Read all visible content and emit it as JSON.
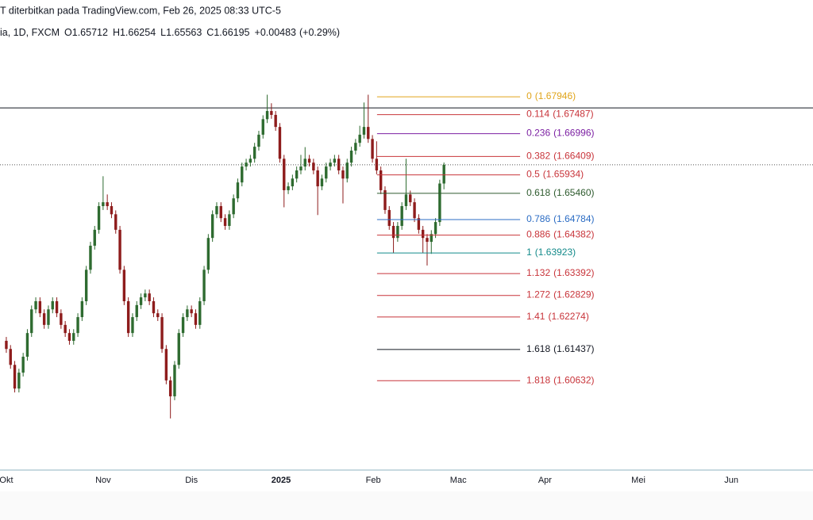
{
  "header": {
    "published": "T diterbitkan pada TradingView.com, Feb 26, 2025 08:33 UTC-5",
    "symbol": "ia, 1D, FXCM",
    "ohlc": [
      {
        "label": "O",
        "value": 1.65712
      },
      {
        "label": "H",
        "value": 1.66254
      },
      {
        "label": "L",
        "value": 1.65563
      },
      {
        "label": "C",
        "value": 1.66195
      }
    ],
    "change": {
      "value": 0.00483,
      "label": "+0.00483"
    },
    "change_pct": {
      "value": 0.29,
      "label": "(+0.29%)"
    }
  },
  "chart_data": {
    "type": "candlestick",
    "up_color": "#2e6b30",
    "down_color": "#8e1c1c",
    "ylim": [
      1.5833,
      1.7044
    ],
    "xlim": [
      -1.5,
      191.7
    ],
    "xticks": [
      {
        "value": 0,
        "label": "Okt"
      },
      {
        "value": 23,
        "label": "Nov"
      },
      {
        "value": 44,
        "label": "Dis"
      },
      {
        "value": 65.3,
        "label": "2025",
        "bold": true
      },
      {
        "value": 87.2,
        "label": "Feb"
      },
      {
        "value": 107.4,
        "label": "Mac"
      },
      {
        "value": 128,
        "label": "Apr"
      },
      {
        "value": 150.2,
        "label": "Mei"
      },
      {
        "value": 172.3,
        "label": "Jun"
      }
    ],
    "horizontal_line": 1.6766,
    "candles": {
      "open": [
        1.6166,
        1.6145,
        1.6104,
        1.6043,
        1.6084,
        1.6125,
        1.6186,
        1.6247,
        1.6268,
        1.6237,
        1.6207,
        1.6247,
        1.6268,
        1.6237,
        1.6207,
        1.6186,
        1.6166,
        1.6186,
        1.6227,
        1.6268,
        1.6349,
        1.6411,
        1.6452,
        1.6513,
        1.6523,
        1.6513,
        1.6492,
        1.6452,
        1.6349,
        1.6268,
        1.6186,
        1.6227,
        1.6258,
        1.6278,
        1.6288,
        1.6268,
        1.6237,
        1.6227,
        1.6145,
        1.6064,
        1.6023,
        1.6104,
        1.6186,
        1.6227,
        1.6247,
        1.6237,
        1.6207,
        1.6268,
        1.6349,
        1.6431,
        1.6492,
        1.6513,
        1.6482,
        1.6462,
        1.6492,
        1.6533,
        1.6574,
        1.6615,
        1.6625,
        1.6635,
        1.6666,
        1.6697,
        1.6737,
        1.6758,
        1.6748,
        1.6717,
        1.6635,
        1.6554,
        1.6564,
        1.6584,
        1.6605,
        1.6615,
        1.6635,
        1.6625,
        1.6605,
        1.6564,
        1.6584,
        1.6615,
        1.6625,
        1.6635,
        1.6605,
        1.6584,
        1.6625,
        1.6656,
        1.6676,
        1.6697,
        1.6717,
        1.6686,
        1.6635,
        1.6605,
        1.6554,
        1.6503,
        1.6462,
        1.6431,
        1.6462,
        1.6513,
        1.6543,
        1.6523,
        1.6482,
        1.6452,
        1.6431,
        1.6421,
        1.6441,
        1.6472,
        1.65712
      ],
      "high": [
        1.6176,
        1.6155,
        1.6114,
        1.6094,
        1.6135,
        1.6196,
        1.6257,
        1.6278,
        1.6278,
        1.6247,
        1.6257,
        1.6278,
        1.6278,
        1.6247,
        1.6217,
        1.6196,
        1.6196,
        1.6237,
        1.6278,
        1.6359,
        1.6421,
        1.6462,
        1.6523,
        1.659,
        1.6543,
        1.6523,
        1.6502,
        1.6462,
        1.6359,
        1.6278,
        1.6237,
        1.6268,
        1.6288,
        1.6298,
        1.6298,
        1.6278,
        1.6247,
        1.6237,
        1.6155,
        1.6074,
        1.6114,
        1.6196,
        1.6237,
        1.6257,
        1.6257,
        1.6247,
        1.6278,
        1.6359,
        1.6441,
        1.6502,
        1.6523,
        1.6523,
        1.6492,
        1.6502,
        1.6543,
        1.6584,
        1.6625,
        1.6635,
        1.6645,
        1.6676,
        1.6707,
        1.6747,
        1.68,
        1.6778,
        1.6758,
        1.6727,
        1.6645,
        1.6574,
        1.6594,
        1.6615,
        1.6645,
        1.6665,
        1.6645,
        1.6635,
        1.6615,
        1.6594,
        1.6625,
        1.6635,
        1.6645,
        1.6645,
        1.6615,
        1.6635,
        1.6666,
        1.6686,
        1.672,
        1.678,
        1.68,
        1.6696,
        1.668,
        1.6615,
        1.6564,
        1.6513,
        1.6472,
        1.6472,
        1.6523,
        1.6635,
        1.6553,
        1.6533,
        1.6492,
        1.6462,
        1.6441,
        1.6451,
        1.6482,
        1.6581,
        1.66254
      ],
      "low": [
        1.6135,
        1.6094,
        1.6033,
        1.6033,
        1.6074,
        1.6115,
        1.6176,
        1.6237,
        1.6227,
        1.6197,
        1.6197,
        1.6237,
        1.6227,
        1.6197,
        1.6176,
        1.6156,
        1.6156,
        1.6176,
        1.6217,
        1.6258,
        1.6339,
        1.6401,
        1.6442,
        1.6503,
        1.6503,
        1.6482,
        1.6442,
        1.6339,
        1.6258,
        1.6176,
        1.6176,
        1.6217,
        1.6248,
        1.6268,
        1.6258,
        1.6227,
        1.6217,
        1.6135,
        1.6054,
        1.5966,
        1.6013,
        1.6094,
        1.6176,
        1.6217,
        1.6227,
        1.6197,
        1.6197,
        1.6258,
        1.6339,
        1.6421,
        1.6482,
        1.6472,
        1.6452,
        1.6452,
        1.6482,
        1.6523,
        1.6564,
        1.6605,
        1.6615,
        1.6625,
        1.6656,
        1.6687,
        1.6727,
        1.6738,
        1.6707,
        1.6625,
        1.651,
        1.6544,
        1.6554,
        1.6574,
        1.6595,
        1.6605,
        1.6615,
        1.6595,
        1.649,
        1.6554,
        1.6574,
        1.6605,
        1.6615,
        1.6595,
        1.652,
        1.6574,
        1.6615,
        1.6646,
        1.6666,
        1.6687,
        1.6676,
        1.6625,
        1.6595,
        1.6544,
        1.6493,
        1.6452,
        1.6392,
        1.6421,
        1.6452,
        1.6503,
        1.6513,
        1.6472,
        1.6442,
        1.6392,
        1.636,
        1.639,
        1.6431,
        1.6462,
        1.65563
      ],
      "close": [
        1.6145,
        1.6104,
        1.6043,
        1.6084,
        1.6125,
        1.6186,
        1.6247,
        1.6268,
        1.6237,
        1.6207,
        1.6247,
        1.6268,
        1.6237,
        1.6207,
        1.6186,
        1.6166,
        1.6186,
        1.6227,
        1.6268,
        1.6349,
        1.6411,
        1.6452,
        1.6513,
        1.6523,
        1.6513,
        1.6492,
        1.6452,
        1.6349,
        1.6268,
        1.6186,
        1.6227,
        1.6258,
        1.6278,
        1.6288,
        1.6268,
        1.6237,
        1.6227,
        1.6145,
        1.6064,
        1.6023,
        1.6104,
        1.6186,
        1.6227,
        1.6247,
        1.6237,
        1.6207,
        1.6268,
        1.6349,
        1.6431,
        1.6492,
        1.6513,
        1.6482,
        1.6462,
        1.6492,
        1.6533,
        1.6574,
        1.6615,
        1.6625,
        1.6635,
        1.6666,
        1.6697,
        1.6737,
        1.6758,
        1.6748,
        1.6717,
        1.6635,
        1.6554,
        1.6564,
        1.6584,
        1.6605,
        1.6615,
        1.6635,
        1.6625,
        1.6605,
        1.6564,
        1.6584,
        1.6615,
        1.6625,
        1.6635,
        1.6605,
        1.6584,
        1.6625,
        1.6656,
        1.6676,
        1.6697,
        1.6717,
        1.6686,
        1.6635,
        1.6605,
        1.6554,
        1.6503,
        1.6462,
        1.6431,
        1.6462,
        1.6513,
        1.6543,
        1.6523,
        1.6482,
        1.6452,
        1.6431,
        1.6421,
        1.6441,
        1.6472,
        1.65712,
        1.66195
      ]
    },
    "fib_x": [
      88.1,
      122.1
    ],
    "fib_levels": [
      {
        "level": 0,
        "price": {
          "value": 1.67946,
          "label": "(1.67946)"
        },
        "color": "#e0a41a"
      },
      {
        "level": 0.114,
        "price": {
          "value": 1.67487,
          "label": "(1.67487)"
        },
        "color": "#c8343a"
      },
      {
        "level": 0.236,
        "price": {
          "value": 1.66996,
          "label": "(1.66996)"
        },
        "color": "#7b1fa2"
      },
      {
        "level": 0.382,
        "price": {
          "value": 1.66409,
          "label": "(1.66409)"
        },
        "color": "#c8343a"
      },
      {
        "level": 0.5,
        "price": {
          "value": 1.65934,
          "label": "(1.65934)"
        },
        "color": "#c8343a"
      },
      {
        "level": 0.618,
        "price": {
          "value": 1.6546,
          "label": "(1.65460)"
        },
        "color": "#2d5a2d"
      },
      {
        "level": 0.786,
        "price": {
          "value": 1.64784,
          "label": "(1.64784)"
        },
        "color": "#2b6cc4"
      },
      {
        "level": 0.886,
        "price": {
          "value": 1.64382,
          "label": "(1.64382)"
        },
        "color": "#c8343a"
      },
      {
        "level": 1,
        "price": {
          "value": 1.63923,
          "label": "(1.63923)"
        },
        "color": "#138a8a"
      },
      {
        "level": 1.132,
        "price": {
          "value": 1.63392,
          "label": "(1.63392)"
        },
        "color": "#c8343a"
      },
      {
        "level": 1.272,
        "price": {
          "value": 1.62829,
          "label": "(1.62829)"
        },
        "color": "#c8343a"
      },
      {
        "level": 1.41,
        "price": {
          "value": 1.62274,
          "label": "(1.62274)"
        },
        "color": "#c8343a"
      },
      {
        "level": 1.618,
        "price": {
          "value": 1.61437,
          "label": "(1.61437)"
        },
        "color": "#131722"
      },
      {
        "level": 1.818,
        "price": {
          "value": 1.60632,
          "label": "(1.60632)"
        },
        "color": "#c8343a"
      }
    ]
  }
}
